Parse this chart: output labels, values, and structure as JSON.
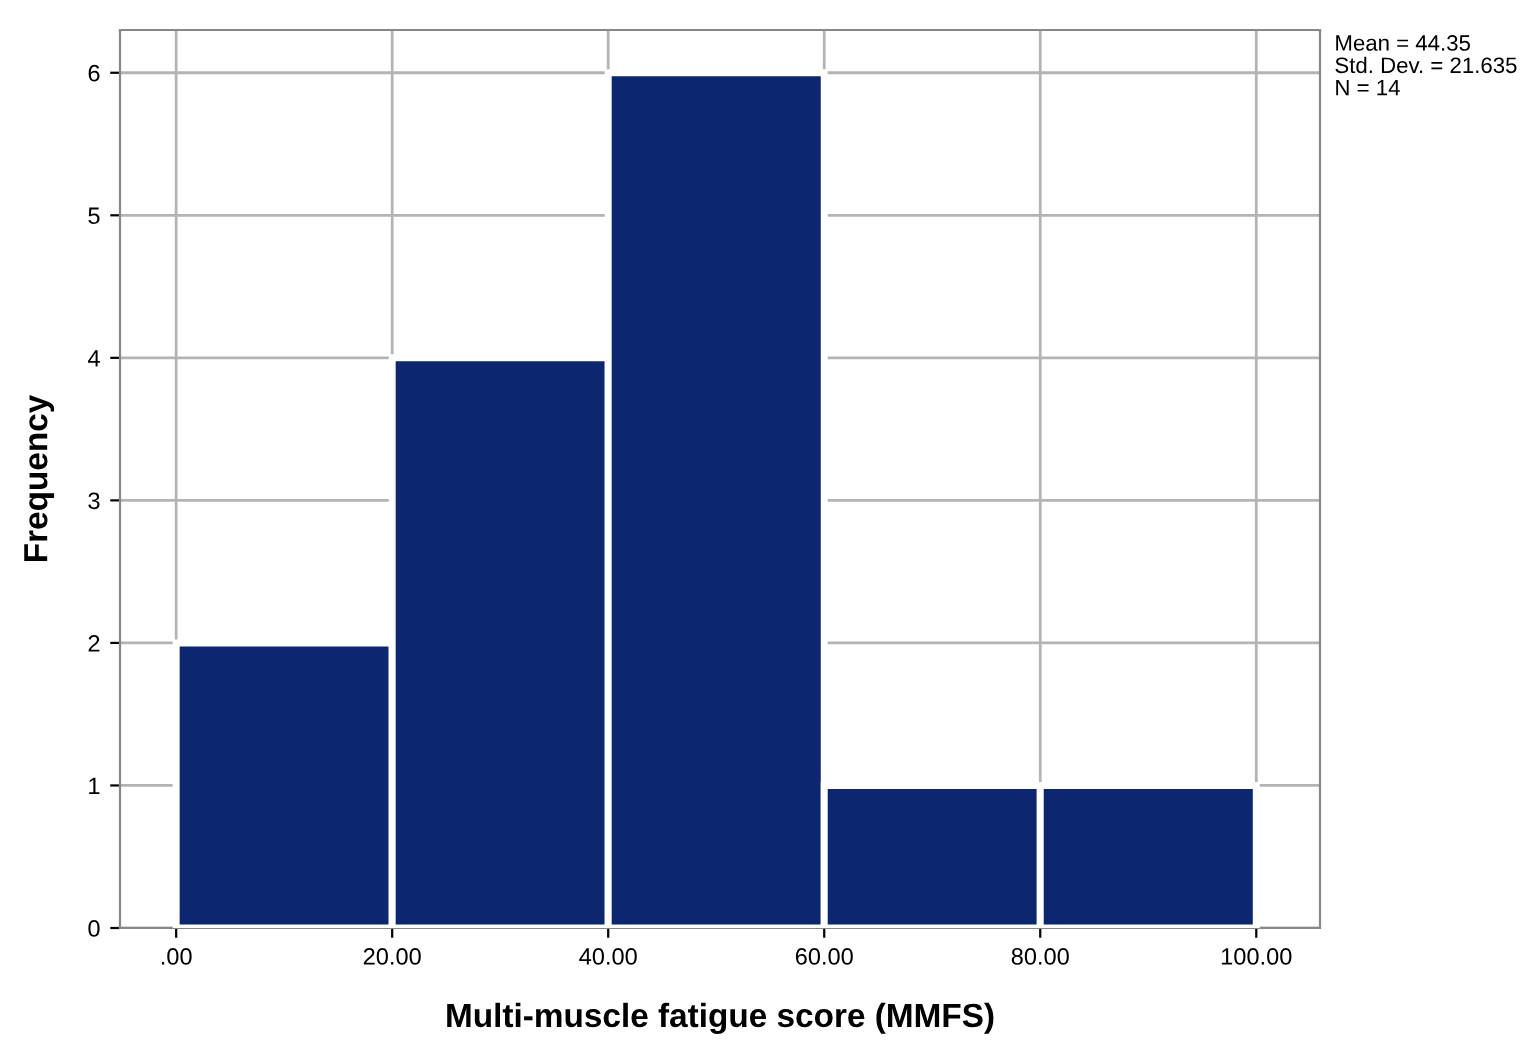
{
  "chart_data": {
    "type": "histogram",
    "xlabel": "Multi-muscle fatigue score (MMFS)",
    "ylabel": "Frequency",
    "bins": [
      0,
      20,
      40,
      60,
      80,
      100
    ],
    "values": [
      2,
      4,
      6,
      1,
      1
    ],
    "color": "#0c2770",
    "xlim": [
      -5.2,
      105.9
    ],
    "ylim": [
      0,
      6.3
    ],
    "xticks": [
      {
        "value": 0,
        "label": ".00"
      },
      {
        "value": 20,
        "label": "20.00"
      },
      {
        "value": 40,
        "label": "40.00"
      },
      {
        "value": 60,
        "label": "60.00"
      },
      {
        "value": 80,
        "label": "80.00"
      },
      {
        "value": 100,
        "label": "100.00"
      }
    ],
    "yticks": [
      0,
      1,
      2,
      3,
      4,
      5,
      6
    ],
    "grid": true,
    "annotations": [
      "Mean = 44.35",
      "Std. Dev. = 21.635",
      "N = 14"
    ]
  }
}
